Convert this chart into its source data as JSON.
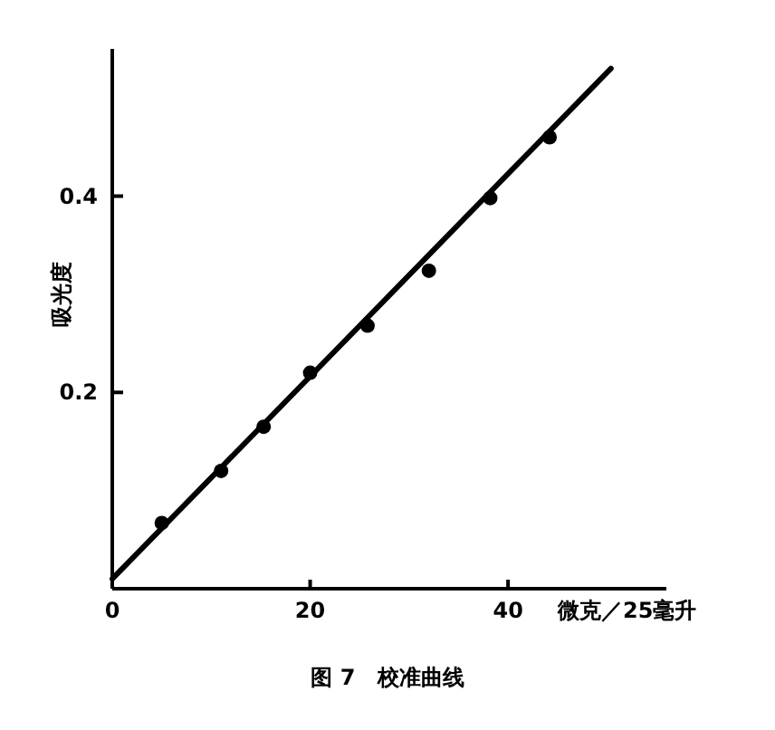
{
  "chart_data": {
    "type": "scatter",
    "title": "图 7　校准曲线",
    "xlabel": "微克／25毫升",
    "ylabel": "吸光度",
    "xlim": [
      0,
      56
    ],
    "ylim": [
      0,
      0.55
    ],
    "xticks": [
      0,
      20,
      40
    ],
    "yticks": [
      0.2,
      0.4
    ],
    "grid": false,
    "series": [
      {
        "type": "scatter",
        "marker": "circle",
        "color": "#000000",
        "x": [
          5,
          11,
          15.3,
          20,
          25.8,
          32,
          38.2,
          44.2
        ],
        "values": [
          0.067,
          0.12,
          0.165,
          0.22,
          0.268,
          0.324,
          0.398,
          0.46
        ]
      },
      {
        "type": "line",
        "color": "#000000",
        "x": [
          0,
          50.4
        ],
        "values": [
          0.01,
          0.53
        ]
      }
    ]
  }
}
